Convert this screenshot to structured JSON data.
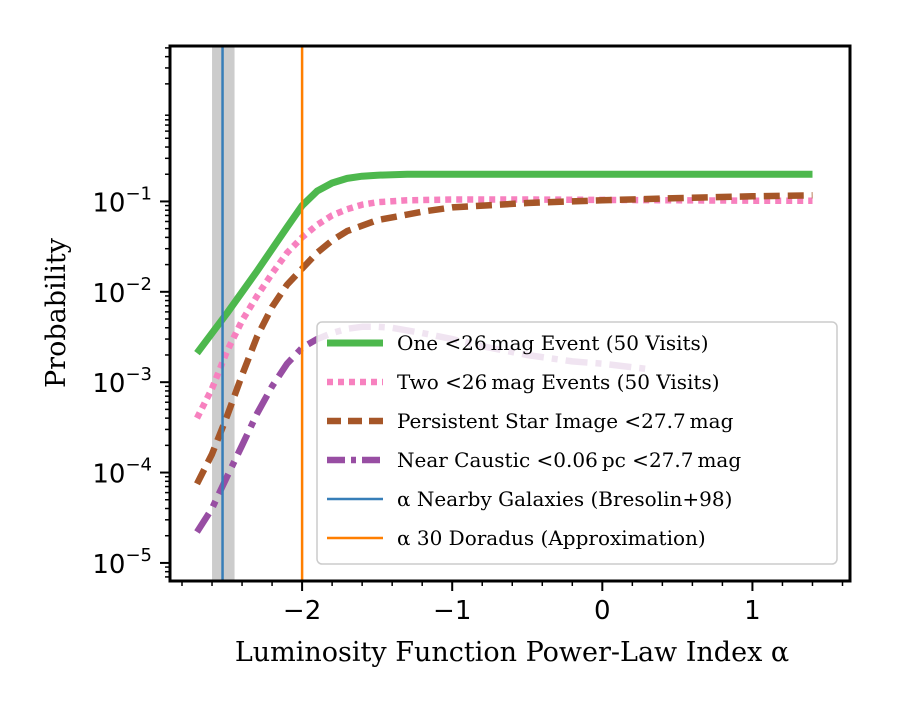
{
  "chart_data": {
    "type": "line",
    "xlabel": "Luminosity Function Power-Law Index α",
    "ylabel": "Probability",
    "xlim": [
      -2.88,
      1.65
    ],
    "ylim_log10": [
      -5.2,
      0.72
    ],
    "yscale": "log",
    "x_ticks": [
      {
        "value": -2,
        "label": "−2"
      },
      {
        "value": -1,
        "label": "−1"
      },
      {
        "value": 0,
        "label": "0"
      },
      {
        "value": 1,
        "label": "1"
      }
    ],
    "y_ticks": [
      {
        "value": -1,
        "label": "10",
        "exp": "−1"
      },
      {
        "value": -2,
        "label": "10",
        "exp": "−2"
      },
      {
        "value": -3,
        "label": "10",
        "exp": "−3"
      },
      {
        "value": -4,
        "label": "10",
        "exp": "−4"
      },
      {
        "value": -5,
        "label": "10",
        "exp": "−5"
      }
    ],
    "legend_position": "lower-right",
    "series": [
      {
        "name": "One <26 mag Event (50 Visits)",
        "color": "#4db84d",
        "style": "solid",
        "x": [
          -2.7,
          -2.5,
          -2.3,
          -2.1,
          -2.0,
          -1.9,
          -1.8,
          -1.7,
          -1.6,
          -1.5,
          -1.3,
          -1.0,
          -0.5,
          0.0,
          0.5,
          1.0,
          1.4
        ],
        "y": [
          0.0021,
          0.0058,
          0.017,
          0.052,
          0.09,
          0.13,
          0.16,
          0.18,
          0.19,
          0.195,
          0.2,
          0.2,
          0.2,
          0.2,
          0.2,
          0.2,
          0.2
        ]
      },
      {
        "name": "Two <26 mag Events (50 Visits)",
        "color": "#f781bf",
        "style": "dotted",
        "x": [
          -2.7,
          -2.6,
          -2.5,
          -2.4,
          -2.3,
          -2.2,
          -2.1,
          -2.0,
          -1.9,
          -1.8,
          -1.7,
          -1.6,
          -1.5,
          -1.3,
          -1.0,
          -0.5,
          0.0,
          0.5,
          1.0,
          1.4
        ],
        "y": [
          0.0004,
          0.00085,
          0.0022,
          0.0048,
          0.009,
          0.016,
          0.027,
          0.04,
          0.055,
          0.07,
          0.082,
          0.092,
          0.098,
          0.103,
          0.105,
          0.105,
          0.104,
          0.103,
          0.102,
          0.102
        ]
      },
      {
        "name": "Persistent Star Image <27.7 mag",
        "color": "#a65628",
        "style": "dashed",
        "x": [
          -2.7,
          -2.6,
          -2.5,
          -2.4,
          -2.3,
          -2.2,
          -2.1,
          -2.0,
          -1.9,
          -1.8,
          -1.7,
          -1.5,
          -1.2,
          -1.0,
          -0.5,
          0.0,
          0.5,
          1.0,
          1.4
        ],
        "y": [
          7.5e-05,
          0.00016,
          0.00042,
          0.0012,
          0.0032,
          0.0068,
          0.012,
          0.018,
          0.027,
          0.037,
          0.047,
          0.062,
          0.077,
          0.086,
          0.096,
          0.103,
          0.109,
          0.114,
          0.117
        ]
      },
      {
        "name": "Near Caustic <0.06 pc <27.7 mag",
        "color": "#984ea3",
        "style": "dashdot",
        "x": [
          -2.7,
          -2.6,
          -2.5,
          -2.4,
          -2.3,
          -2.2,
          -2.1,
          -2.0,
          -1.9,
          -1.8,
          -1.7,
          -1.6,
          -1.5,
          -1.4,
          -1.2,
          -1.0,
          -0.8,
          -0.5,
          -0.2,
          0.0,
          0.3
        ],
        "y": [
          2.2e-05,
          4e-05,
          9e-05,
          0.0002,
          0.00045,
          0.0009,
          0.0016,
          0.0024,
          0.003,
          0.0035,
          0.0039,
          0.0041,
          0.0041,
          0.004,
          0.0035,
          0.003,
          0.0025,
          0.002,
          0.0017,
          0.0016,
          0.0014
        ]
      }
    ],
    "vlines": [
      {
        "name": "α Nearby Galaxies (Bresolin+98)",
        "color": "#377eb8",
        "x": -2.53,
        "band": [
          -2.6,
          -2.45
        ],
        "band_color": "#cccccc"
      },
      {
        "name": "α 30 Doradus (Approximation)",
        "color": "#ff7f00",
        "x": -2.0
      }
    ]
  }
}
